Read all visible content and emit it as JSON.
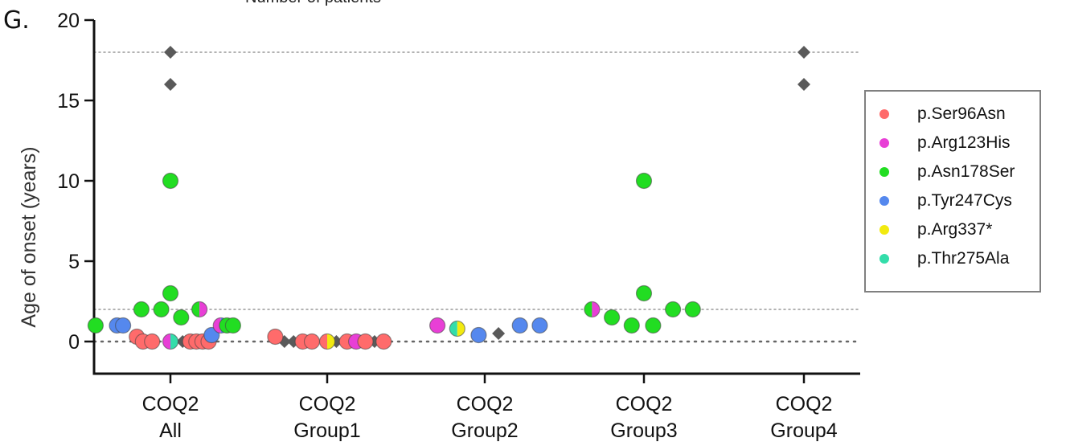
{
  "panel_label": "G.",
  "top_cut_text": "Number of patients",
  "colors": {
    "p.Ser96Asn": "#ff6b6b",
    "p.Arg123His": "#e83fd6",
    "p.Asn178Ser": "#22dd22",
    "p.Tyr247Cys": "#5588ee",
    "p.Arg337*": "#f2ea10",
    "p.Thr275Ala": "#33ddaa",
    "other": "#5a5a5a"
  },
  "legend": [
    {
      "label": "p.Ser96Asn",
      "color": "#ff6b6b"
    },
    {
      "label": "p.Arg123His",
      "color": "#e83fd6"
    },
    {
      "label": "p.Asn178Ser",
      "color": "#22dd22"
    },
    {
      "label": "p.Tyr247Cys",
      "color": "#5588ee"
    },
    {
      "label": "p.Arg337*",
      "color": "#f2ea10"
    },
    {
      "label": "p.Thr275Ala",
      "color": "#33ddaa"
    }
  ],
  "chart_data": {
    "type": "scatter",
    "title": "",
    "xlabel": "",
    "ylabel": "Age of onset (years)",
    "ylim": [
      -2,
      20
    ],
    "yticks": [
      0,
      5,
      10,
      15,
      20
    ],
    "reference_lines": [
      0,
      2,
      18
    ],
    "categories": [
      {
        "line1": "COQ2",
        "line2": "All"
      },
      {
        "line1": "COQ2",
        "line2": "Group1"
      },
      {
        "line1": "COQ2",
        "line2": "Group2"
      },
      {
        "line1": "COQ2",
        "line2": "Group3"
      },
      {
        "line1": "COQ2",
        "line2": "Group4"
      }
    ],
    "points": [
      {
        "g": 0,
        "o": -0.49,
        "y": 1.0,
        "c": [
          "p.Asn178Ser",
          "p.Asn178Ser"
        ]
      },
      {
        "g": 0,
        "o": -0.35,
        "y": 1.0,
        "c": [
          "p.Tyr247Cys",
          "p.Tyr247Cys"
        ]
      },
      {
        "g": 0,
        "o": -0.31,
        "y": 1.0,
        "c": [
          "p.Tyr247Cys",
          "p.Tyr247Cys"
        ]
      },
      {
        "g": 0,
        "o": -0.22,
        "y": 0.3,
        "c": [
          "p.Ser96Asn",
          "p.Ser96Asn"
        ]
      },
      {
        "g": 0,
        "o": -0.18,
        "y": 0.0,
        "c": [
          "p.Ser96Asn",
          "p.Ser96Asn"
        ]
      },
      {
        "g": 0,
        "o": -0.12,
        "y": 0.0,
        "c": [
          "p.Ser96Asn",
          "p.Ser96Asn"
        ]
      },
      {
        "g": 0,
        "o": -0.19,
        "y": 2.0,
        "c": [
          "p.Asn178Ser",
          "p.Asn178Ser"
        ]
      },
      {
        "g": 0,
        "o": -0.06,
        "y": 2.0,
        "c": [
          "p.Asn178Ser",
          "p.Asn178Ser"
        ]
      },
      {
        "g": 0,
        "o": 0.0,
        "y": 3.0,
        "c": [
          "p.Asn178Ser",
          "p.Asn178Ser"
        ]
      },
      {
        "g": 0,
        "o": 0.0,
        "y": 10.0,
        "c": [
          "p.Asn178Ser",
          "p.Asn178Ser"
        ]
      },
      {
        "g": 0,
        "o": 0.07,
        "y": 1.5,
        "c": [
          "p.Asn178Ser",
          "p.Asn178Ser"
        ]
      },
      {
        "g": 0,
        "o": 0.0,
        "y": 0.0,
        "c": [
          "p.Arg123His",
          "p.Thr275Ala"
        ]
      },
      {
        "g": 0,
        "o": 0.13,
        "y": 0.0,
        "c": [
          "p.Ser96Asn",
          "p.Ser96Asn"
        ]
      },
      {
        "g": 0,
        "o": 0.17,
        "y": 0.0,
        "c": [
          "p.Ser96Asn",
          "p.Ser96Asn"
        ]
      },
      {
        "g": 0,
        "o": 0.21,
        "y": 0.0,
        "c": [
          "p.Ser96Asn",
          "p.Ser96Asn"
        ]
      },
      {
        "g": 0,
        "o": 0.25,
        "y": 0.0,
        "c": [
          "p.Ser96Asn",
          "p.Ser96Asn"
        ]
      },
      {
        "g": 0,
        "o": 0.19,
        "y": 2.0,
        "c": [
          "p.Asn178Ser",
          "p.Arg123His"
        ]
      },
      {
        "g": 0,
        "o": 0.27,
        "y": 0.4,
        "c": [
          "p.Tyr247Cys",
          "p.Tyr247Cys"
        ]
      },
      {
        "g": 0,
        "o": 0.33,
        "y": 1.0,
        "c": [
          "p.Arg123His",
          "p.Tyr247Cys"
        ]
      },
      {
        "g": 0,
        "o": 0.37,
        "y": 1.0,
        "c": [
          "p.Asn178Ser",
          "p.Asn178Ser"
        ]
      },
      {
        "g": 0,
        "o": 0.41,
        "y": 1.0,
        "c": [
          "p.Asn178Ser",
          "p.Asn178Ser"
        ]
      },
      {
        "g": 1,
        "o": -0.34,
        "y": 0.3,
        "c": [
          "p.Ser96Asn",
          "p.Ser96Asn"
        ]
      },
      {
        "g": 1,
        "o": -0.16,
        "y": 0.0,
        "c": [
          "p.Ser96Asn",
          "p.Ser96Asn"
        ]
      },
      {
        "g": 1,
        "o": -0.1,
        "y": 0.0,
        "c": [
          "p.Ser96Asn",
          "p.Ser96Asn"
        ]
      },
      {
        "g": 1,
        "o": 0.0,
        "y": 0.0,
        "c": [
          "p.Ser96Asn",
          "p.Arg337*"
        ]
      },
      {
        "g": 1,
        "o": 0.13,
        "y": 0.0,
        "c": [
          "p.Ser96Asn",
          "p.Ser96Asn"
        ]
      },
      {
        "g": 1,
        "o": 0.19,
        "y": 0.0,
        "c": [
          "p.Arg123His",
          "p.Arg123His"
        ]
      },
      {
        "g": 1,
        "o": 0.25,
        "y": 0.0,
        "c": [
          "p.Ser96Asn",
          "p.Ser96Asn"
        ]
      },
      {
        "g": 1,
        "o": 0.37,
        "y": 0.0,
        "c": [
          "p.Ser96Asn",
          "p.Ser96Asn"
        ]
      },
      {
        "g": 2,
        "o": -0.31,
        "y": 1.0,
        "c": [
          "p.Arg123His",
          "p.Arg123His"
        ]
      },
      {
        "g": 2,
        "o": -0.18,
        "y": 0.8,
        "c": [
          "p.Thr275Ala",
          "p.Arg337*"
        ]
      },
      {
        "g": 2,
        "o": -0.04,
        "y": 0.4,
        "c": [
          "p.Tyr247Cys",
          "p.Tyr247Cys"
        ]
      },
      {
        "g": 2,
        "o": 0.23,
        "y": 1.0,
        "c": [
          "p.Tyr247Cys",
          "p.Tyr247Cys"
        ]
      },
      {
        "g": 2,
        "o": 0.36,
        "y": 1.0,
        "c": [
          "p.Tyr247Cys",
          "p.Tyr247Cys"
        ]
      },
      {
        "g": 3,
        "o": -0.34,
        "y": 2.0,
        "c": [
          "p.Asn178Ser",
          "p.Arg123His"
        ]
      },
      {
        "g": 3,
        "o": -0.21,
        "y": 1.5,
        "c": [
          "p.Asn178Ser",
          "p.Asn178Ser"
        ]
      },
      {
        "g": 3,
        "o": -0.08,
        "y": 1.0,
        "c": [
          "p.Asn178Ser",
          "p.Asn178Ser"
        ]
      },
      {
        "g": 3,
        "o": 0.0,
        "y": 3.0,
        "c": [
          "p.Asn178Ser",
          "p.Asn178Ser"
        ]
      },
      {
        "g": 3,
        "o": 0.0,
        "y": 10.0,
        "c": [
          "p.Asn178Ser",
          "p.Asn178Ser"
        ]
      },
      {
        "g": 3,
        "o": 0.06,
        "y": 1.0,
        "c": [
          "p.Asn178Ser",
          "p.Asn178Ser"
        ]
      },
      {
        "g": 3,
        "o": 0.19,
        "y": 2.0,
        "c": [
          "p.Asn178Ser",
          "p.Asn178Ser"
        ]
      },
      {
        "g": 3,
        "o": 0.32,
        "y": 2.0,
        "c": [
          "p.Asn178Ser",
          "p.Asn178Ser"
        ]
      }
    ],
    "diamonds": [
      {
        "g": 0,
        "o": 0.0,
        "y": 18
      },
      {
        "g": 0,
        "o": 0.0,
        "y": 16
      },
      {
        "g": 0,
        "o": 0.08,
        "y": 0
      },
      {
        "g": 0,
        "o": 0.1,
        "y": 0
      },
      {
        "g": 1,
        "o": -0.28,
        "y": 0
      },
      {
        "g": 1,
        "o": -0.22,
        "y": 0
      },
      {
        "g": 1,
        "o": 0.06,
        "y": 0
      },
      {
        "g": 1,
        "o": 0.31,
        "y": 0
      },
      {
        "g": 2,
        "o": 0.09,
        "y": 0.5
      },
      {
        "g": 4,
        "o": 0.0,
        "y": 18
      },
      {
        "g": 4,
        "o": 0.0,
        "y": 16
      }
    ]
  }
}
